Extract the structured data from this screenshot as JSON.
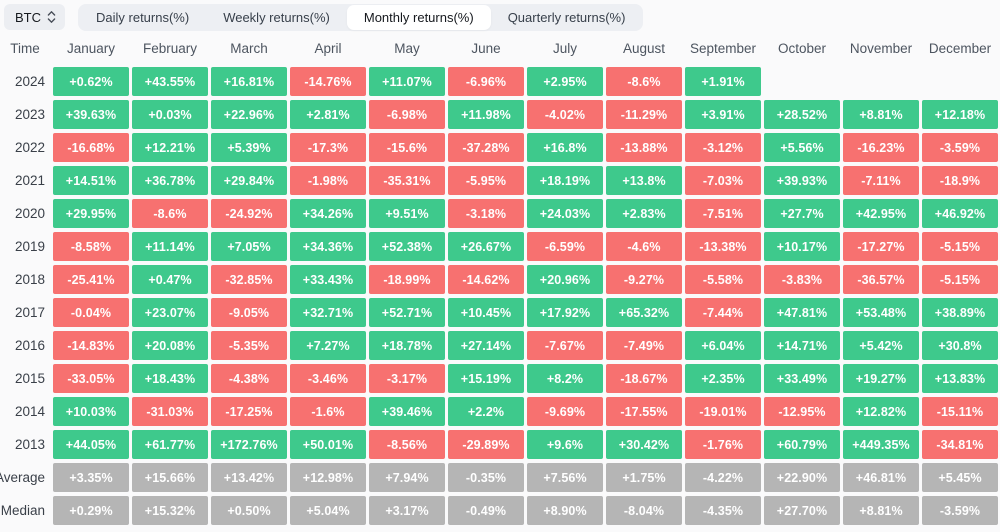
{
  "toolbar": {
    "symbol_selector": {
      "label": "BTC",
      "icon": "sort-arrows-icon"
    },
    "tabs": [
      {
        "label": "Daily returns(%)",
        "active": false
      },
      {
        "label": "Weekly returns(%)",
        "active": false
      },
      {
        "label": "Monthly returns(%)",
        "active": true
      },
      {
        "label": "Quarterly returns(%)",
        "active": false
      }
    ]
  },
  "chart_data": {
    "type": "heatmap",
    "title": "Monthly returns(%)",
    "corner_label": "Time",
    "columns": [
      "January",
      "February",
      "March",
      "April",
      "May",
      "June",
      "July",
      "August",
      "September",
      "October",
      "November",
      "December"
    ],
    "rows": [
      {
        "label": "2024",
        "kind": "year",
        "values": [
          "+0.62%",
          "+43.55%",
          "+16.81%",
          "-14.76%",
          "+11.07%",
          "-6.96%",
          "+2.95%",
          "-8.6%",
          "+1.91%",
          "",
          "",
          ""
        ]
      },
      {
        "label": "2023",
        "kind": "year",
        "values": [
          "+39.63%",
          "+0.03%",
          "+22.96%",
          "+2.81%",
          "-6.98%",
          "+11.98%",
          "-4.02%",
          "-11.29%",
          "+3.91%",
          "+28.52%",
          "+8.81%",
          "+12.18%"
        ]
      },
      {
        "label": "2022",
        "kind": "year",
        "values": [
          "-16.68%",
          "+12.21%",
          "+5.39%",
          "-17.3%",
          "-15.6%",
          "-37.28%",
          "+16.8%",
          "-13.88%",
          "-3.12%",
          "+5.56%",
          "-16.23%",
          "-3.59%"
        ]
      },
      {
        "label": "2021",
        "kind": "year",
        "values": [
          "+14.51%",
          "+36.78%",
          "+29.84%",
          "-1.98%",
          "-35.31%",
          "-5.95%",
          "+18.19%",
          "+13.8%",
          "-7.03%",
          "+39.93%",
          "-7.11%",
          "-18.9%"
        ]
      },
      {
        "label": "2020",
        "kind": "year",
        "values": [
          "+29.95%",
          "-8.6%",
          "-24.92%",
          "+34.26%",
          "+9.51%",
          "-3.18%",
          "+24.03%",
          "+2.83%",
          "-7.51%",
          "+27.7%",
          "+42.95%",
          "+46.92%"
        ]
      },
      {
        "label": "2019",
        "kind": "year",
        "values": [
          "-8.58%",
          "+11.14%",
          "+7.05%",
          "+34.36%",
          "+52.38%",
          "+26.67%",
          "-6.59%",
          "-4.6%",
          "-13.38%",
          "+10.17%",
          "-17.27%",
          "-5.15%"
        ]
      },
      {
        "label": "2018",
        "kind": "year",
        "values": [
          "-25.41%",
          "+0.47%",
          "-32.85%",
          "+33.43%",
          "-18.99%",
          "-14.62%",
          "+20.96%",
          "-9.27%",
          "-5.58%",
          "-3.83%",
          "-36.57%",
          "-5.15%"
        ]
      },
      {
        "label": "2017",
        "kind": "year",
        "values": [
          "-0.04%",
          "+23.07%",
          "-9.05%",
          "+32.71%",
          "+52.71%",
          "+10.45%",
          "+17.92%",
          "+65.32%",
          "-7.44%",
          "+47.81%",
          "+53.48%",
          "+38.89%"
        ]
      },
      {
        "label": "2016",
        "kind": "year",
        "values": [
          "-14.83%",
          "+20.08%",
          "-5.35%",
          "+7.27%",
          "+18.78%",
          "+27.14%",
          "-7.67%",
          "-7.49%",
          "+6.04%",
          "+14.71%",
          "+5.42%",
          "+30.8%"
        ]
      },
      {
        "label": "2015",
        "kind": "year",
        "values": [
          "-33.05%",
          "+18.43%",
          "-4.38%",
          "-3.46%",
          "-3.17%",
          "+15.19%",
          "+8.2%",
          "-18.67%",
          "+2.35%",
          "+33.49%",
          "+19.27%",
          "+13.83%"
        ]
      },
      {
        "label": "2014",
        "kind": "year",
        "values": [
          "+10.03%",
          "-31.03%",
          "-17.25%",
          "-1.6%",
          "+39.46%",
          "+2.2%",
          "-9.69%",
          "-17.55%",
          "-19.01%",
          "-12.95%",
          "+12.82%",
          "-15.11%"
        ]
      },
      {
        "label": "2013",
        "kind": "year",
        "values": [
          "+44.05%",
          "+61.77%",
          "+172.76%",
          "+50.01%",
          "-8.56%",
          "-29.89%",
          "+9.6%",
          "+30.42%",
          "-1.76%",
          "+60.79%",
          "+449.35%",
          "-34.81%"
        ]
      },
      {
        "label": "Average",
        "kind": "summary",
        "values": [
          "+3.35%",
          "+15.66%",
          "+13.42%",
          "+12.98%",
          "+7.94%",
          "-0.35%",
          "+7.56%",
          "+1.75%",
          "-4.22%",
          "+22.90%",
          "+46.81%",
          "+5.45%"
        ]
      },
      {
        "label": "Median",
        "kind": "summary",
        "values": [
          "+0.29%",
          "+15.32%",
          "+0.50%",
          "+5.04%",
          "+3.17%",
          "-0.49%",
          "+8.90%",
          "-8.04%",
          "-4.35%",
          "+27.70%",
          "+8.81%",
          "-3.59%"
        ]
      }
    ],
    "colors": {
      "positive": "#3ec98c",
      "negative": "#f77170",
      "summary": "#b5b5b5",
      "cell_text": "#ffffff"
    }
  }
}
